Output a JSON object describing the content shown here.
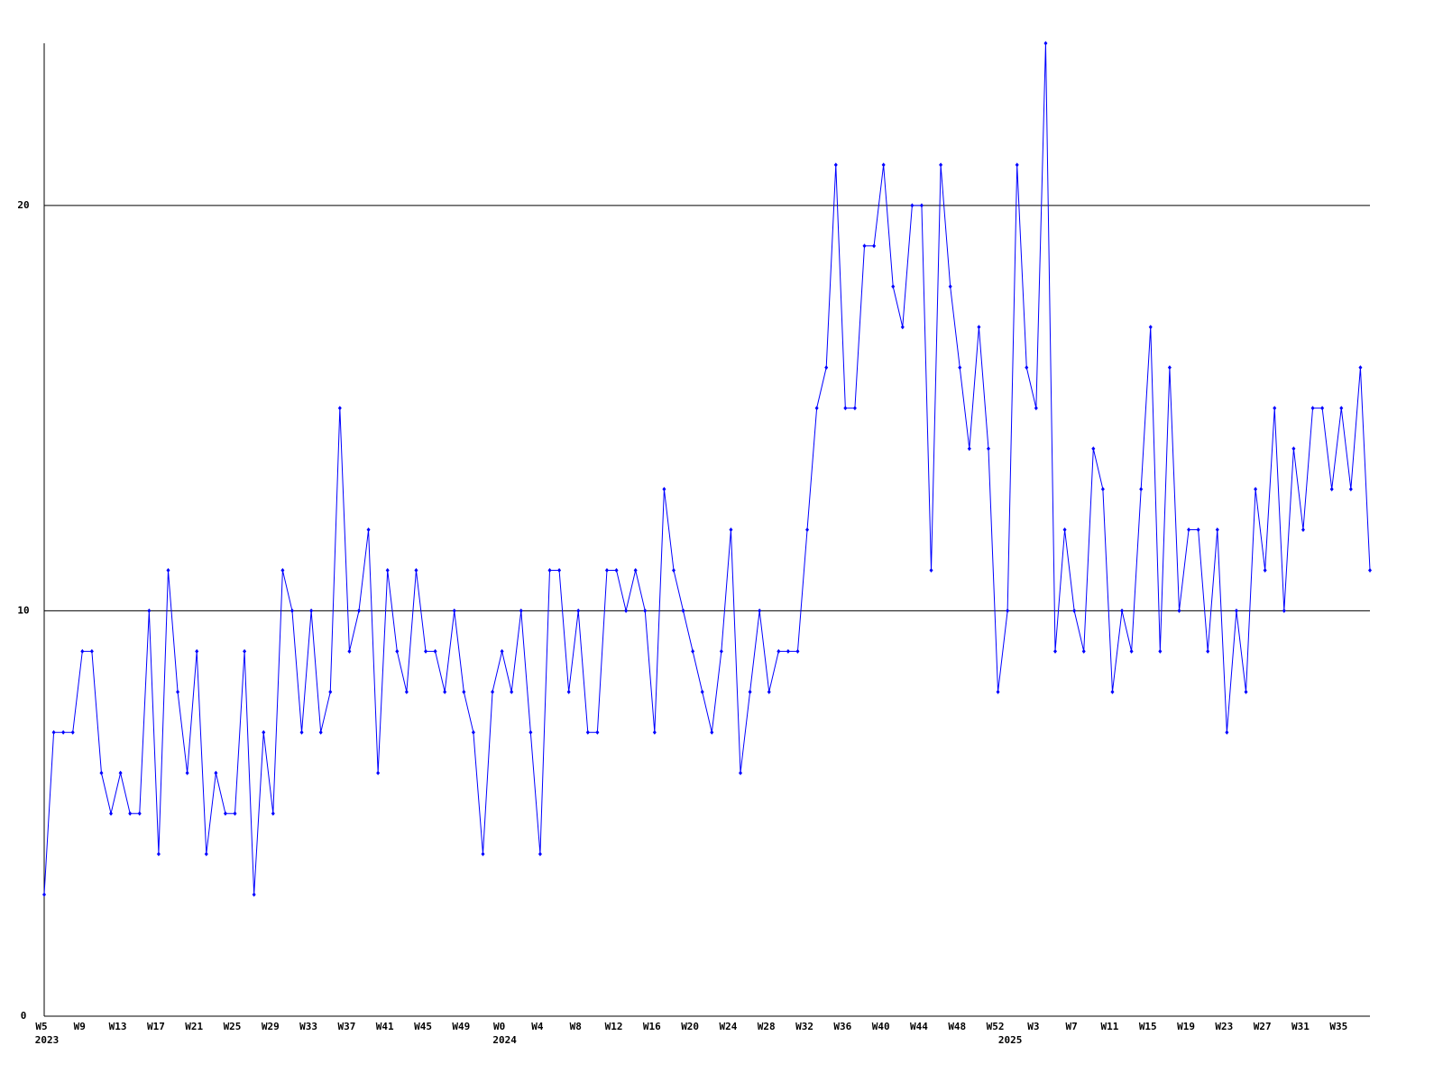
{
  "chart_data": {
    "type": "line",
    "categories": [
      "W5",
      null,
      null,
      null,
      "W9",
      null,
      null,
      null,
      "W13",
      null,
      null,
      null,
      "W17",
      null,
      null,
      null,
      "W21",
      null,
      null,
      null,
      "W25",
      null,
      null,
      null,
      "W29",
      null,
      null,
      null,
      "W33",
      null,
      null,
      null,
      "W37",
      null,
      null,
      null,
      "W41",
      null,
      null,
      null,
      "W45",
      null,
      null,
      null,
      "W49",
      null,
      null,
      null,
      "W0",
      null,
      null,
      null,
      "W4",
      null,
      null,
      null,
      "W8",
      null,
      null,
      null,
      "W12",
      null,
      null,
      null,
      "W16",
      null,
      null,
      null,
      "W20",
      null,
      null,
      null,
      "W24",
      null,
      null,
      null,
      "W28",
      null,
      null,
      null,
      "W32",
      null,
      null,
      null,
      "W36",
      null,
      null,
      null,
      "W40",
      null,
      null,
      null,
      "W44",
      null,
      null,
      null,
      "W48",
      null,
      null,
      null,
      "W52",
      null,
      null,
      null,
      "W3",
      null,
      null,
      null,
      "W7",
      null,
      null,
      null,
      "W11",
      null,
      null,
      null,
      "W15",
      null,
      null,
      null,
      "W19",
      null,
      null,
      null,
      "W23",
      null,
      null,
      null,
      "W27",
      null,
      null,
      null,
      "W31",
      null,
      null,
      null,
      "W35",
      null,
      null,
      null
    ],
    "category_years": [
      "2023",
      null,
      null,
      null,
      null,
      null,
      null,
      null,
      null,
      null,
      null,
      null,
      null,
      null,
      null,
      null,
      null,
      null,
      null,
      null,
      null,
      null,
      null,
      null,
      null,
      null,
      null,
      null,
      null,
      null,
      null,
      null,
      null,
      null,
      null,
      null,
      null,
      null,
      null,
      null,
      null,
      null,
      null,
      null,
      null,
      null,
      null,
      null,
      "2024",
      null,
      null,
      null,
      null,
      null,
      null,
      null,
      null,
      null,
      null,
      null,
      null,
      null,
      null,
      null,
      null,
      null,
      null,
      null,
      null,
      null,
      null,
      null,
      null,
      null,
      null,
      null,
      null,
      null,
      null,
      null,
      null,
      null,
      null,
      null,
      null,
      null,
      null,
      null,
      null,
      null,
      null,
      null,
      null,
      null,
      null,
      null,
      null,
      null,
      null,
      null,
      null,
      "2025",
      null,
      null,
      null,
      null,
      null,
      null,
      null,
      null,
      null,
      null,
      null,
      null,
      null,
      null,
      null,
      null,
      null,
      null,
      null,
      null,
      null,
      null,
      null,
      null,
      null,
      null,
      null,
      null,
      null,
      null,
      null,
      null,
      null,
      null,
      null,
      null,
      null,
      null
    ],
    "series": [
      {
        "color": "#0000ff",
        "values": [
          3,
          7,
          7,
          7,
          9,
          9,
          6,
          5,
          6,
          5,
          5,
          10,
          4,
          11,
          8,
          6,
          9,
          4,
          6,
          5,
          5,
          9,
          3,
          7,
          5,
          11,
          10,
          7,
          10,
          7,
          8,
          15,
          9,
          10,
          12,
          6,
          11,
          9,
          8,
          11,
          9,
          9,
          8,
          10,
          8,
          7,
          4,
          8,
          9,
          8,
          10,
          7,
          4,
          11,
          11,
          8,
          10,
          7,
          7,
          11,
          11,
          10,
          11,
          10,
          7,
          13,
          11,
          10,
          9,
          8,
          7,
          9,
          12,
          6,
          8,
          10,
          8,
          9,
          9,
          9,
          12,
          15,
          16,
          21,
          15,
          15,
          19,
          19,
          21,
          18,
          17,
          20,
          20,
          11,
          21,
          18,
          16,
          14,
          17,
          14,
          8,
          10,
          21,
          16,
          15,
          24,
          9,
          12,
          10,
          9,
          14,
          13,
          8,
          10,
          9,
          13,
          17,
          9,
          16,
          10,
          12,
          12,
          9,
          12,
          7,
          10,
          8,
          13,
          11,
          15,
          10,
          14,
          12,
          15,
          15,
          13,
          15,
          13,
          16,
          11
        ]
      }
    ],
    "ylim": [
      0,
      24
    ],
    "yticks": [
      0,
      10,
      20
    ],
    "grid": true
  }
}
